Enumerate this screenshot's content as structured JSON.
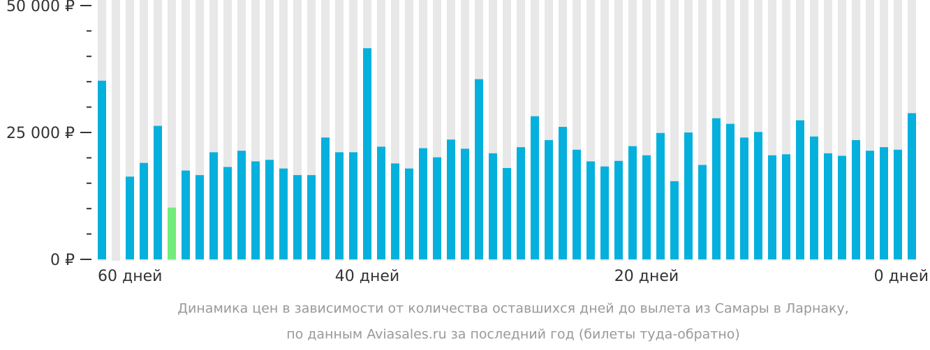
{
  "chart_data": {
    "type": "bar",
    "caption": [
      "Динамика цен в зависимости от количества оставшихся дней до вылета из Самары в Ларнаку,",
      "по данным Aviasales.ru за последний год (билеты туда-обратно)"
    ],
    "x": [
      59,
      58,
      57,
      56,
      55,
      54,
      53,
      52,
      51,
      50,
      49,
      48,
      47,
      46,
      45,
      44,
      43,
      42,
      41,
      40,
      39,
      38,
      37,
      36,
      35,
      34,
      33,
      32,
      31,
      30,
      29,
      28,
      27,
      26,
      25,
      24,
      23,
      22,
      21,
      20,
      19,
      18,
      17,
      16,
      15,
      14,
      13,
      12,
      11,
      10,
      9,
      8,
      7,
      6,
      5,
      4,
      3,
      2,
      1
    ],
    "values": [
      35200,
      null,
      16300,
      19000,
      26300,
      10200,
      17500,
      16600,
      21100,
      18200,
      21400,
      19300,
      19600,
      17900,
      16600,
      16600,
      24000,
      21100,
      21100,
      41600,
      22200,
      18900,
      17900,
      21900,
      20100,
      23600,
      21800,
      35500,
      20900,
      18000,
      22100,
      28200,
      23500,
      26100,
      21600,
      19300,
      18300,
      19400,
      22300,
      20500,
      24900,
      15400,
      25000,
      18600,
      27800,
      26700,
      24000,
      25100,
      20500,
      20700,
      27400,
      24200,
      20900,
      20400,
      23500,
      21400,
      22100,
      21600,
      28800
    ],
    "color": "#06b0dd",
    "highlight_color": "#73ec7b",
    "highlight_index": 5,
    "stripe_color": "#e8e8e8",
    "xlim": [
      60,
      0
    ],
    "xticks": [
      {
        "value": 60,
        "label": "60 дней"
      },
      {
        "value": 40,
        "label": "40 дней"
      },
      {
        "value": 20,
        "label": "20 дней"
      },
      {
        "value": 0,
        "label": "0 дней"
      }
    ],
    "ylim": [
      0,
      50000
    ],
    "yticks": [
      {
        "value": 0,
        "label": "0 ₽"
      },
      {
        "value": 25000,
        "label": "25 000 ₽"
      },
      {
        "value": 50000,
        "label": "50 000 ₽"
      }
    ],
    "yminor": [
      5000,
      10000,
      15000,
      20000,
      30000,
      35000,
      40000,
      45000
    ]
  }
}
